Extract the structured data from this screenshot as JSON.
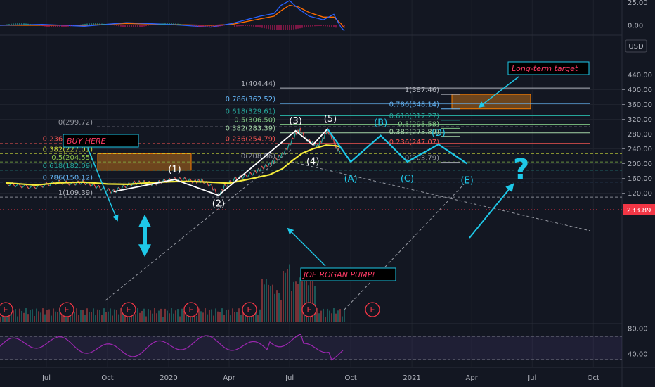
{
  "header": {
    "currency_label": "USD"
  },
  "price_badge": {
    "value": "233.89",
    "color": "#f23645"
  },
  "chart_data": {
    "type": "line",
    "instrument": "",
    "price_axis": {
      "ticks": [
        "440.00",
        "400.00",
        "360.00",
        "320.00",
        "280.00",
        "240.00",
        "200.00",
        "160.00",
        "120.00"
      ],
      "range": [
        100,
        460
      ]
    },
    "time_axis": {
      "labels": [
        "Jul",
        "Oct",
        "2020",
        "Apr",
        "Jul",
        "Oct",
        "2021",
        "Apr",
        "Jul",
        "Oct"
      ]
    },
    "macd_axis": {
      "ticks": [
        "25.00",
        "0.00"
      ]
    },
    "rsi_axis": {
      "ticks": [
        "80.00",
        "40.00"
      ]
    },
    "price_series": [
      [
        "2019-05-01",
        146
      ],
      [
        "2019-05-20",
        141
      ],
      [
        "2019-06-10",
        136
      ],
      [
        "2019-07-01",
        143
      ],
      [
        "2019-07-20",
        150
      ],
      [
        "2019-08-10",
        146
      ],
      [
        "2019-08-25",
        150
      ],
      [
        "2019-09-10",
        141
      ],
      [
        "2019-09-25",
        131
      ],
      [
        "2019-10-10",
        124
      ],
      [
        "2019-10-25",
        137
      ],
      [
        "2019-11-10",
        148
      ],
      [
        "2019-11-25",
        149
      ],
      [
        "2019-12-10",
        145
      ],
      [
        "2019-12-25",
        153
      ],
      [
        "2020-01-10",
        157
      ],
      [
        "2020-01-25",
        157
      ],
      [
        "2020-02-10",
        151
      ],
      [
        "2020-02-20",
        154
      ],
      [
        "2020-03-05",
        140
      ],
      [
        "2020-03-16",
        114
      ],
      [
        "2020-03-25",
        138
      ],
      [
        "2020-04-10",
        159
      ],
      [
        "2020-04-25",
        166
      ],
      [
        "2020-05-10",
        176
      ],
      [
        "2020-05-20",
        188
      ],
      [
        "2020-06-01",
        198
      ],
      [
        "2020-06-10",
        211
      ],
      [
        "2020-06-20",
        225
      ],
      [
        "2020-06-30",
        248
      ],
      [
        "2020-07-10",
        280
      ],
      [
        "2020-07-17",
        291
      ],
      [
        "2020-07-25",
        268
      ],
      [
        "2020-08-05",
        255
      ],
      [
        "2020-08-12",
        248
      ],
      [
        "2020-08-20",
        266
      ],
      [
        "2020-08-27",
        291
      ],
      [
        "2020-09-05",
        263
      ],
      [
        "2020-09-10",
        240
      ],
      [
        "2020-09-15",
        234
      ]
    ],
    "moving_average": [
      [
        "2019-05-01",
        148
      ],
      [
        "2019-06-15",
        142
      ],
      [
        "2019-07-20",
        148
      ],
      [
        "2019-08-25",
        150
      ],
      [
        "2019-10-01",
        145
      ],
      [
        "2019-11-01",
        144
      ],
      [
        "2019-12-01",
        148
      ],
      [
        "2020-01-01",
        151
      ],
      [
        "2020-02-01",
        152
      ],
      [
        "2020-03-01",
        150
      ],
      [
        "2020-04-01",
        147
      ],
      [
        "2020-05-01",
        158
      ],
      [
        "2020-06-01",
        170
      ],
      [
        "2020-06-20",
        186
      ],
      [
        "2020-07-05",
        208
      ],
      [
        "2020-07-20",
        228
      ],
      [
        "2020-08-05",
        240
      ],
      [
        "2020-08-25",
        250
      ],
      [
        "2020-09-10",
        248
      ],
      [
        "2020-09-15",
        245
      ]
    ],
    "fib_left": [
      {
        "label": "1(404.44)",
        "value": 404.44,
        "color": "#b2b5be"
      },
      {
        "label": "0.786(362.52)",
        "value": 362.52,
        "color": "#64b5f6"
      },
      {
        "label": "0.618(329.61)",
        "value": 329.61,
        "color": "#26a69a"
      },
      {
        "label": "0.5(306.50)",
        "value": 306.5,
        "color": "#81c784"
      },
      {
        "label": "0(299.72)",
        "value": 299.72,
        "color": "#9598a1"
      },
      {
        "label": "0.382(283.39)",
        "value": 283.39,
        "color": "#a5d6a7"
      },
      {
        "label": "0.236(254.80)",
        "value": 254.8,
        "color": "#ef5350"
      },
      {
        "label": "0.236(254.79)",
        "value": 254.79,
        "color": "#ef5350"
      },
      {
        "label": "0.382(227.01)",
        "value": 227.01,
        "color": "#cddc39"
      },
      {
        "label": "0(208.56)",
        "value": 208.56,
        "color": "#9598a1"
      },
      {
        "label": "0.5(204.55)",
        "value": 204.55,
        "color": "#8bc34a"
      },
      {
        "label": "0.618(182.09)",
        "value": 182.09,
        "color": "#26a69a"
      },
      {
        "label": "0.786(150.12)",
        "value": 150.12,
        "color": "#64b5f6"
      },
      {
        "label": "1(109.39)",
        "value": 109.39,
        "color": "#b2b5be"
      }
    ],
    "fib_right": [
      {
        "label": "1(387.46)",
        "value": 387.46,
        "color": "#b2b5be"
      },
      {
        "label": "0.786(348.14)",
        "value": 348.14,
        "color": "#64b5f6"
      },
      {
        "label": "0.618(317.27)",
        "value": 317.27,
        "color": "#26a69a"
      },
      {
        "label": "0.5(295.58)",
        "value": 295.58,
        "color": "#81c784"
      },
      {
        "label": "0.382(273.89)",
        "value": 273.89,
        "color": "#a5d6a7"
      },
      {
        "label": "0.236(247.07)",
        "value": 247.07,
        "color": "#ef5350"
      },
      {
        "label": "0(203.79)",
        "value": 203.79,
        "color": "#9598a1"
      }
    ],
    "impulse_waves": [
      [
        "(1)",
        "2020-01-10",
        157
      ],
      [
        "(2)",
        "2020-03-16",
        114
      ],
      [
        "(3)",
        "2020-07-10",
        289
      ],
      [
        "(4)",
        "2020-08-05",
        251
      ],
      [
        "(5)",
        "2020-08-27",
        294
      ]
    ],
    "corrective_waves": [
      [
        "(A)",
        "2020-10-01",
        205
      ],
      [
        "(B)",
        "2020-11-15",
        276
      ],
      [
        "(C)",
        "2020-12-25",
        205
      ],
      [
        "(D)",
        "2021-02-10",
        252
      ],
      [
        "(E)",
        "2021-03-25",
        200
      ]
    ],
    "zones": [
      {
        "name": "buy-zone",
        "low": 182.09,
        "high": 227.01
      },
      {
        "name": "target-zone",
        "low": 348.14,
        "high": 387.46
      }
    ],
    "annotations": [
      "BUY HERE",
      "JOE ROGAN PUMP!",
      "Long-term target",
      "?"
    ],
    "earnings_markers": [
      "E",
      "E",
      "E",
      "E",
      "E",
      "E",
      "E"
    ]
  }
}
